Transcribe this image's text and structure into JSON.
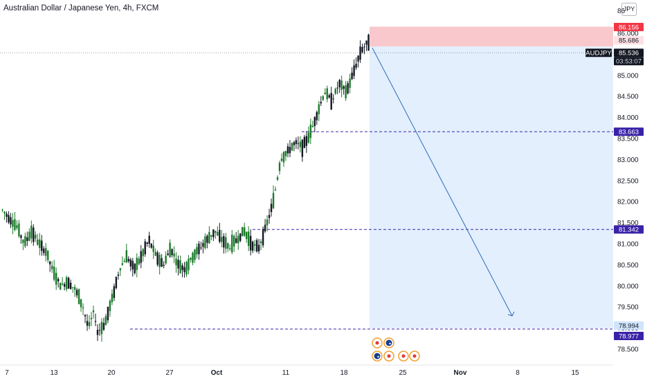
{
  "header": {
    "title": "Australian Dollar / Japanese Yen, 4h, FXCM"
  },
  "currency_label": "JPY",
  "chart_data": {
    "type": "candlestick",
    "instrument": "AUDJPY",
    "timeframe": "4h",
    "source": "FXCM",
    "ylim": [
      78.3,
      86.4
    ],
    "y_ticks": [
      78.5,
      79.0,
      79.5,
      80.0,
      80.5,
      81.0,
      81.5,
      82.0,
      82.5,
      83.0,
      83.5,
      84.0,
      84.5,
      85.0,
      85.5,
      86.0
    ],
    "y_tick_labels": [
      "78.500",
      "79.000",
      "79.500",
      "80.000",
      "80.500",
      "81.000",
      "81.500",
      "82.000",
      "82.500",
      "83.000",
      "83.500",
      "84.000",
      "84.500",
      "85.000",
      "85.500",
      "86.000"
    ],
    "top_tick_partial": "86",
    "x_ticks": [
      "7",
      "13",
      "20",
      "27",
      "Oct",
      "11",
      "18",
      "25",
      "Nov",
      "8",
      "15"
    ],
    "price_path": [
      [
        0,
        81.8
      ],
      [
        0.02,
        81.6
      ],
      [
        0.04,
        81.4
      ],
      [
        0.06,
        81.0
      ],
      [
        0.08,
        81.3
      ],
      [
        0.1,
        81.0
      ],
      [
        0.12,
        80.8
      ],
      [
        0.14,
        80.3
      ],
      [
        0.16,
        80.0
      ],
      [
        0.18,
        80.1
      ],
      [
        0.2,
        79.9
      ],
      [
        0.22,
        79.5
      ],
      [
        0.235,
        79.0
      ],
      [
        0.25,
        79.4
      ],
      [
        0.26,
        78.9
      ],
      [
        0.28,
        79.1
      ],
      [
        0.3,
        79.7
      ],
      [
        0.32,
        80.4
      ],
      [
        0.34,
        80.7
      ],
      [
        0.36,
        80.4
      ],
      [
        0.38,
        80.7
      ],
      [
        0.4,
        81.1
      ],
      [
        0.42,
        80.7
      ],
      [
        0.44,
        80.5
      ],
      [
        0.46,
        80.9
      ],
      [
        0.48,
        80.5
      ],
      [
        0.5,
        80.4
      ],
      [
        0.52,
        80.7
      ],
      [
        0.54,
        80.9
      ],
      [
        0.56,
        81.1
      ],
      [
        0.58,
        81.3
      ],
      [
        0.6,
        81.1
      ],
      [
        0.62,
        80.9
      ],
      [
        0.64,
        81.1
      ],
      [
        0.66,
        81.3
      ],
      [
        0.68,
        81.0
      ],
      [
        0.7,
        80.9
      ],
      [
        0.72,
        81.4
      ],
      [
        0.74,
        82.0
      ],
      [
        0.76,
        83.0
      ],
      [
        0.78,
        83.2
      ],
      [
        0.8,
        83.4
      ],
      [
        0.82,
        83.3
      ],
      [
        0.84,
        83.6
      ],
      [
        0.86,
        84.1
      ],
      [
        0.88,
        84.6
      ],
      [
        0.9,
        84.4
      ],
      [
        0.92,
        84.8
      ],
      [
        0.94,
        84.6
      ],
      [
        0.96,
        85.1
      ],
      [
        0.98,
        85.6
      ],
      [
        1.0,
        85.8
      ]
    ],
    "trade": {
      "stop_loss": 86.156,
      "entry": 85.686,
      "target": 78.994,
      "last_price": 85.536
    },
    "price_labels": [
      {
        "text": "86.156",
        "price": 86.156,
        "bg": "#f23645",
        "fg": "#ffffff"
      },
      {
        "text": "85.686",
        "price": 85.686,
        "bg": "#fde0e3",
        "fg": "#131722"
      },
      {
        "text": "AUDJPY",
        "price": 85.536,
        "bg": "#131722",
        "fg": "#ffffff"
      },
      {
        "text": "85.536",
        "price": 85.536,
        "bg": "#131722",
        "fg": "#ffffff"
      },
      {
        "text": "03:53:07",
        "price": 85.536,
        "bg": "#131722",
        "fg": "#d1d4dc"
      },
      {
        "text": "83.663",
        "price": 83.663,
        "bg": "#3a22a8",
        "fg": "#ffffff"
      },
      {
        "text": "81.342",
        "price": 81.342,
        "bg": "#3a22a8",
        "fg": "#ffffff"
      },
      {
        "text": "78.994",
        "price": 78.994,
        "bg": "#cfe3fb",
        "fg": "#131722"
      },
      {
        "text": "78.977",
        "price": 78.977,
        "bg": "#3a22a8",
        "fg": "#ffffff"
      }
    ],
    "level_lines": [
      83.663,
      81.342,
      78.977
    ],
    "colors": {
      "up": "#26a69a",
      "up_body": "#1b7a2a",
      "down": "#131722",
      "stop_zone": "#f8c8cc",
      "target_zone": "#e3effd",
      "arrow": "#2e6bb8",
      "level": "#3a22a8"
    }
  }
}
